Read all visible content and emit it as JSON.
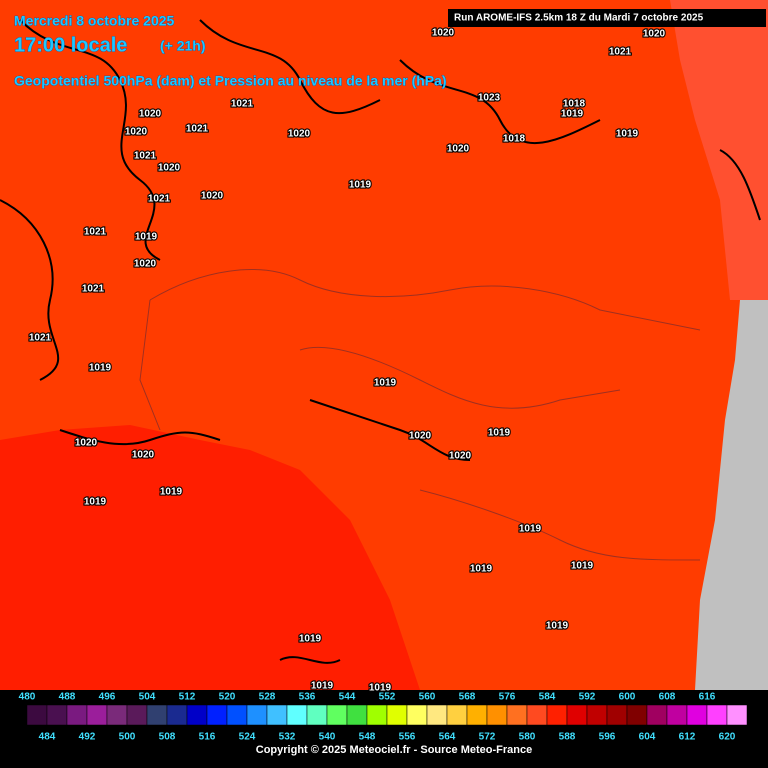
{
  "header": {
    "date": "Mercredi 8 octobre 2025",
    "time": "17:00 locale",
    "lead": "(+ 21h)",
    "subtitle": "Geopotentiel 500hPa (dam) et Pression au niveau de la mer (hPa)",
    "run": "Run AROME-IFS 2.5km 18 Z du Mardi 7 octobre 2025"
  },
  "isobar_labels": [
    "1020",
    "1021",
    "1020",
    "1020",
    "1021",
    "1020",
    "1021",
    "1020",
    "1021",
    "1020",
    "1019",
    "1020",
    "1018",
    "1018",
    "1019",
    "1019",
    "1021",
    "1020",
    "1021",
    "1019",
    "1020",
    "1021",
    "1021",
    "1019",
    "1019",
    "1020",
    "1019",
    "1020",
    "1020",
    "1020",
    "1019",
    "1019",
    "1019",
    "1019",
    "1019",
    "1019",
    "1019",
    "1019",
    "1019",
    "1023"
  ],
  "legend": {
    "values": [
      480,
      484,
      488,
      492,
      496,
      500,
      504,
      508,
      512,
      516,
      520,
      524,
      528,
      532,
      536,
      540,
      544,
      548,
      552,
      556,
      560,
      564,
      568,
      572,
      576,
      580,
      584,
      588,
      592,
      596,
      600,
      604,
      608,
      612,
      616,
      620
    ],
    "colors": [
      "#3c0a40",
      "#4a1050",
      "#7a1a80",
      "#9b1e9b",
      "#7a2a7a",
      "#5a1a5a",
      "#304070",
      "#1a2a90",
      "#0000c8",
      "#0020ff",
      "#0050ff",
      "#1e90ff",
      "#40c0ff",
      "#60ffff",
      "#60ffc0",
      "#60ff60",
      "#40e040",
      "#a0ff00",
      "#e0ff00",
      "#ffff60",
      "#ffe880",
      "#ffd040",
      "#ffb000",
      "#ff9000",
      "#ff7020",
      "#ff4a20",
      "#ff2000",
      "#e00000",
      "#c00000",
      "#a00000",
      "#800000",
      "#a00060",
      "#c000a0",
      "#e000e0",
      "#ff40ff",
      "#ff90ff"
    ]
  },
  "copyright": "Copyright © 2025 Meteociel.fr - Source Meteo-France"
}
